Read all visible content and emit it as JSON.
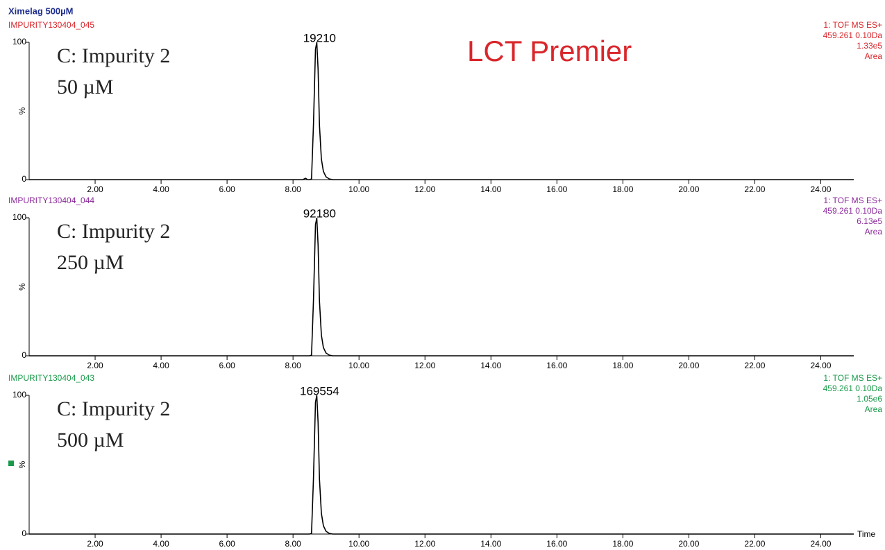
{
  "title": "Ximelag 500µM",
  "annotation": "LCT Premier",
  "chart_data": [
    {
      "type": "line",
      "sample": "IMPURITY130404_045",
      "color": "#d9262b",
      "info": [
        "1: TOF MS ES+",
        "459.261 0.10Da",
        "1.33e5",
        "Area"
      ],
      "label_lines": [
        "C: Impurity 2",
        "50 µM"
      ],
      "peak_label": 19210,
      "ylabel": "%",
      "ylim": [
        0,
        100
      ],
      "yticks": [
        0,
        100
      ],
      "xlim": [
        0,
        25
      ],
      "xticks": [
        {
          "value": 2,
          "label": "2.00"
        },
        {
          "value": 4,
          "label": "4.00"
        },
        {
          "value": 6,
          "label": "6.00"
        },
        {
          "value": 8,
          "label": "8.00"
        },
        {
          "value": 10,
          "label": "10.00"
        },
        {
          "value": 12,
          "label": "12.00"
        },
        {
          "value": 14,
          "label": "14.00"
        },
        {
          "value": 16,
          "label": "16.00"
        },
        {
          "value": 18,
          "label": "18.00"
        },
        {
          "value": 20,
          "label": "20.00"
        },
        {
          "value": 22,
          "label": "22.00"
        },
        {
          "value": 24,
          "label": "24.00"
        }
      ],
      "series": [
        {
          "color": "#000000",
          "x": [
            0,
            8.3,
            8.38,
            8.44,
            8.5,
            8.56,
            8.62,
            8.68,
            8.72,
            8.76,
            8.8,
            8.86,
            8.92,
            9.0,
            9.1,
            9.2,
            25
          ],
          "values": [
            0,
            0,
            1,
            0,
            0,
            0.5,
            40,
            95,
            100,
            80,
            40,
            15,
            6,
            2,
            0.5,
            0,
            0
          ]
        }
      ]
    },
    {
      "type": "line",
      "sample": "IMPURITY130404_044",
      "color": "#8b2a9b",
      "info": [
        "1: TOF MS ES+",
        "459.261 0.10Da",
        "6.13e5",
        "Area"
      ],
      "label_lines": [
        "C: Impurity 2",
        "250 µM"
      ],
      "peak_label": 92180,
      "ylabel": "%",
      "ylim": [
        0,
        100
      ],
      "yticks": [
        0,
        100
      ],
      "xlim": [
        0,
        25
      ],
      "xticks": [
        {
          "value": 2,
          "label": "2.00"
        },
        {
          "value": 4,
          "label": "4.00"
        },
        {
          "value": 6,
          "label": "6.00"
        },
        {
          "value": 8,
          "label": "8.00"
        },
        {
          "value": 10,
          "label": "10.00"
        },
        {
          "value": 12,
          "label": "12.00"
        },
        {
          "value": 14,
          "label": "14.00"
        },
        {
          "value": 16,
          "label": "16.00"
        },
        {
          "value": 18,
          "label": "18.00"
        },
        {
          "value": 20,
          "label": "20.00"
        },
        {
          "value": 22,
          "label": "22.00"
        },
        {
          "value": 24,
          "label": "24.00"
        }
      ],
      "series": [
        {
          "color": "#000000",
          "x": [
            0,
            8.5,
            8.56,
            8.62,
            8.68,
            8.72,
            8.76,
            8.8,
            8.86,
            8.92,
            9.0,
            9.1,
            9.2,
            25
          ],
          "values": [
            0,
            0,
            0.5,
            40,
            95,
            100,
            80,
            40,
            15,
            6,
            2,
            0.5,
            0,
            0
          ]
        }
      ]
    },
    {
      "type": "line",
      "sample": "IMPURITY130404_043",
      "color": "#1a9a4a",
      "info": [
        "1: TOF MS ES+",
        "459.261 0.10Da",
        "1.05e6",
        "Area"
      ],
      "label_lines": [
        "C: Impurity 2",
        "500 µM"
      ],
      "peak_label": 169554,
      "ylabel": "%",
      "xlabel": "Time",
      "ylim": [
        0,
        100
      ],
      "yticks": [
        0,
        100
      ],
      "xlim": [
        0,
        25
      ],
      "xticks": [
        {
          "value": 2,
          "label": "2.00"
        },
        {
          "value": 4,
          "label": "4.00"
        },
        {
          "value": 6,
          "label": "6.00"
        },
        {
          "value": 8,
          "label": "8.00"
        },
        {
          "value": 10,
          "label": "10.00"
        },
        {
          "value": 12,
          "label": "12.00"
        },
        {
          "value": 14,
          "label": "14.00"
        },
        {
          "value": 16,
          "label": "16.00"
        },
        {
          "value": 18,
          "label": "18.00"
        },
        {
          "value": 20,
          "label": "20.00"
        },
        {
          "value": 22,
          "label": "22.00"
        },
        {
          "value": 24,
          "label": "24.00"
        }
      ],
      "series": [
        {
          "color": "#000000",
          "x": [
            0,
            8.5,
            8.56,
            8.62,
            8.68,
            8.72,
            8.76,
            8.8,
            8.86,
            8.92,
            9.0,
            9.1,
            9.2,
            25
          ],
          "values": [
            0,
            0,
            0.5,
            40,
            95,
            100,
            80,
            40,
            15,
            6,
            2,
            0.5,
            0,
            0
          ]
        }
      ]
    }
  ]
}
